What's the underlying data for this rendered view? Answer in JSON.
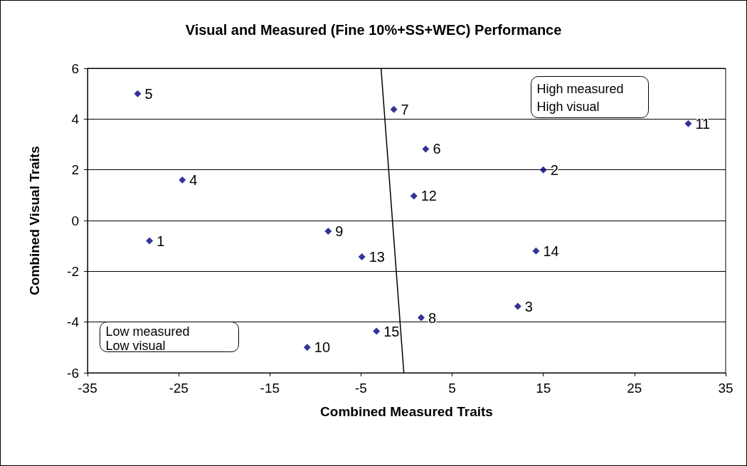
{
  "chart_data": {
    "type": "scatter",
    "title": "Visual and Measured (Fine 10%+SS+WEC) Performance",
    "xlabel": "Combined Measured Traits",
    "ylabel": "Combined Visual Traits",
    "xlim": [
      -35,
      35
    ],
    "xticks": [
      -35,
      -25,
      -15,
      -5,
      5,
      15,
      25,
      35
    ],
    "ylim": [
      -6,
      6
    ],
    "yticks": [
      -6,
      -4,
      -2,
      0,
      2,
      4,
      6
    ],
    "grid": "y",
    "marker": "diamond",
    "series": [
      {
        "color": "#000080",
        "x": [
          -28.2,
          15.0,
          12.2,
          -24.6,
          -29.5,
          2.1,
          -1.4,
          1.6,
          -8.6,
          -10.9,
          30.9,
          0.8,
          -4.9,
          14.2,
          -3.3
        ],
        "values": [
          -0.8,
          2.0,
          -3.38,
          1.6,
          5.0,
          2.82,
          4.38,
          -3.83,
          -0.42,
          -5.0,
          3.82,
          0.97,
          -1.43,
          -1.2,
          -4.36
        ]
      },
      {
        "type": "line",
        "color": "#000000",
        "marker": "none",
        "line_style": "solid",
        "x": [
          -0.3,
          -2.8
        ],
        "values": [
          -6,
          6
        ]
      }
    ],
    "annotations": [
      "High measured\nHigh visual",
      "Low measured\nLow visual",
      {
        "text": "1",
        "x": -28.2,
        "y": -0.8
      },
      {
        "text": "2",
        "x": 15.0,
        "y": 2.0
      },
      {
        "text": "3",
        "x": 12.2,
        "y": -3.38
      },
      {
        "text": "4",
        "x": -24.6,
        "y": 1.6
      },
      {
        "text": "5",
        "x": -29.5,
        "y": 5.0
      },
      {
        "text": "6",
        "x": 2.1,
        "y": 2.82
      },
      {
        "text": "7",
        "x": -1.4,
        "y": 4.38
      },
      {
        "text": "8",
        "x": 1.6,
        "y": -3.83
      },
      {
        "text": "9",
        "x": -8.6,
        "y": -0.42
      },
      {
        "text": "10",
        "x": -10.9,
        "y": -5.0
      },
      {
        "text": "11",
        "x": 30.9,
        "y": 3.82
      },
      {
        "text": "12",
        "x": 0.8,
        "y": 0.97
      },
      {
        "text": "13",
        "x": -4.9,
        "y": -1.43
      },
      {
        "text": "14",
        "x": 14.2,
        "y": -1.2
      },
      {
        "text": "15",
        "x": -3.3,
        "y": -4.36
      }
    ]
  }
}
